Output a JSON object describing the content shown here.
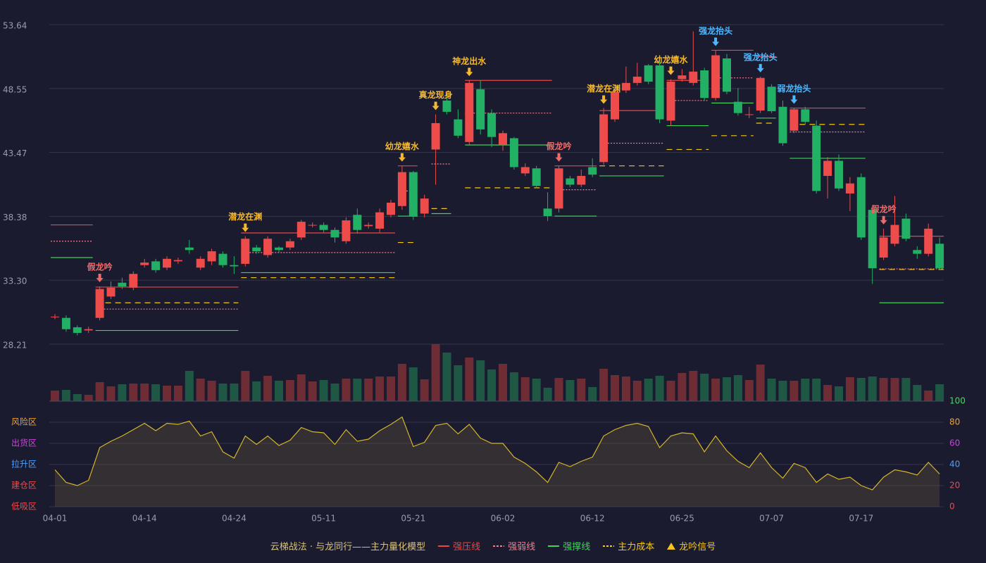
{
  "chart_data": [
    {
      "type": "candlestick",
      "title": "云梯战法 · 与龙同行——主力量化模型",
      "up_color": "#ee4b4b",
      "down_color": "#22b065",
      "ylim": [
        28.21,
        53.64
      ],
      "yticks": [
        28.21,
        {
          "value": 33.3,
          "label": "33.30"
        },
        38.38,
        43.47,
        48.55,
        53.64
      ],
      "grid": true,
      "open": [
        30.4,
        30.3,
        29.55,
        29.3,
        30.3,
        32.0,
        33.1,
        32.7,
        34.5,
        34.8,
        34.3,
        34.8,
        35.9,
        34.3,
        34.8,
        35.4,
        34.5,
        34.6,
        35.9,
        35.3,
        35.9,
        35.9,
        36.7,
        37.7,
        37.7,
        37.3,
        36.4,
        38.5,
        37.6,
        37.4,
        38.5,
        39.2,
        41.9,
        38.6,
        43.7,
        47.6,
        46.1,
        44.3,
        48.5,
        46.6,
        44.1,
        44.6,
        41.8,
        42.2,
        39.0,
        39.0,
        41.4,
        40.9,
        42.3,
        42.7,
        46.1,
        48.4,
        49.0,
        50.4,
        50.4,
        46.0,
        49.3,
        49.0,
        50.0,
        47.8,
        50.95,
        47.5,
        46.5,
        46.8,
        48.7,
        47.1,
        45.2,
        46.9,
        45.6,
        41.6,
        42.8,
        40.2,
        41.5,
        38.9,
        35.1,
        36.2,
        38.2,
        35.7,
        35.4,
        36.2
      ],
      "high": [
        30.6,
        30.5,
        29.7,
        29.6,
        32.8,
        33.2,
        33.5,
        34.0,
        35.0,
        35.0,
        35.2,
        35.1,
        36.5,
        35.2,
        35.8,
        35.6,
        35.2,
        36.8,
        36.1,
        36.8,
        36.0,
        36.6,
        38.1,
        37.9,
        37.9,
        37.5,
        38.3,
        39.0,
        37.9,
        39.0,
        39.7,
        42.4,
        42.0,
        40.1,
        46.5,
        48.1,
        46.9,
        49.2,
        49.2,
        46.9,
        45.2,
        44.7,
        42.6,
        42.4,
        40.3,
        42.4,
        41.6,
        42.1,
        43.0,
        47.0,
        48.5,
        50.3,
        50.6,
        50.5,
        50.9,
        49.3,
        50.1,
        53.1,
        50.2,
        51.6,
        51.3,
        48.6,
        47.1,
        49.5,
        48.9,
        47.6,
        47.0,
        47.1,
        46.0,
        43.1,
        43.3,
        41.5,
        41.8,
        39.1,
        37.4,
        40.0,
        38.6,
        36.0,
        37.8,
        36.7
      ],
      "low": [
        30.2,
        29.2,
        28.9,
        29.1,
        30.1,
        31.8,
        32.6,
        32.5,
        34.3,
        33.9,
        34.1,
        34.6,
        35.4,
        34.1,
        34.5,
        34.3,
        33.8,
        34.4,
        35.4,
        35.1,
        35.5,
        35.7,
        36.5,
        37.5,
        37.1,
        36.3,
        36.2,
        37.0,
        37.4,
        37.1,
        38.3,
        38.9,
        38.1,
        38.3,
        40.9,
        46.5,
        44.6,
        44.1,
        44.9,
        43.9,
        43.6,
        42.1,
        41.6,
        40.6,
        38.0,
        38.7,
        40.7,
        40.7,
        41.5,
        42.5,
        45.9,
        48.2,
        48.8,
        48.9,
        45.8,
        45.6,
        49.1,
        48.8,
        47.6,
        47.6,
        48.1,
        46.4,
        46.2,
        46.6,
        46.6,
        44.0,
        45.0,
        45.7,
        40.2,
        39.8,
        40.4,
        38.8,
        36.5,
        33.0,
        34.9,
        36.0,
        36.4,
        35.0,
        35.2,
        34.1
      ],
      "close": [
        30.4,
        29.4,
        29.1,
        29.4,
        32.6,
        32.7,
        32.8,
        33.8,
        34.7,
        34.1,
        35.0,
        34.9,
        35.7,
        35.0,
        35.6,
        34.5,
        34.4,
        36.6,
        35.6,
        36.6,
        35.7,
        36.4,
        37.95,
        37.7,
        37.3,
        36.7,
        38.06,
        37.3,
        37.7,
        38.7,
        39.47,
        41.9,
        38.35,
        39.8,
        45.8,
        46.7,
        44.8,
        49.0,
        45.3,
        44.7,
        45.0,
        42.3,
        42.3,
        40.8,
        38.4,
        42.2,
        40.9,
        41.6,
        41.7,
        46.5,
        48.3,
        49.0,
        49.5,
        49.1,
        46.1,
        49.1,
        49.6,
        49.9,
        47.8,
        51.2,
        48.3,
        46.6,
        46.5,
        49.4,
        46.75,
        44.2,
        46.9,
        45.9,
        40.4,
        42.8,
        40.6,
        41.0,
        36.7,
        34.25,
        36.7,
        37.7,
        36.6,
        35.4,
        37.4,
        34.25
      ],
      "levels": [
        {
          "name": "强压线",
          "color": "#ee4444",
          "dash": "",
          "segments": [
            {
              "start": 0,
              "end": 3,
              "value": 37.7
            },
            {
              "start": 4,
              "end": 16,
              "value": 32.75
            },
            {
              "start": 17,
              "end": 30,
              "value": 37.06
            },
            {
              "start": 31,
              "end": 32,
              "value": 42.4
            },
            {
              "start": 37,
              "end": 44,
              "value": 49.2
            },
            {
              "start": 45,
              "end": 48,
              "value": 42.4
            },
            {
              "start": 49,
              "end": 54,
              "value": 46.8
            },
            {
              "start": 55,
              "end": 58,
              "value": 49.2
            },
            {
              "start": 59,
              "end": 62,
              "value": 51.6
            },
            {
              "start": 63,
              "end": 64,
              "value": 51.1
            },
            {
              "start": 66,
              "end": 72,
              "value": 47.0
            },
            {
              "start": 74,
              "end": 79,
              "value": 36.8
            }
          ]
        },
        {
          "name": "强弱线",
          "color": "#f27d8c",
          "dash": "2,2",
          "segments": [
            {
              "start": 0,
              "end": 3,
              "value": 36.4
            },
            {
              "start": 4,
              "end": 16,
              "value": 31.0
            },
            {
              "start": 17,
              "end": 30,
              "value": 35.5
            },
            {
              "start": 31,
              "end": 32,
              "value": 40.4
            },
            {
              "start": 34,
              "end": 35,
              "value": 42.55
            },
            {
              "start": 37,
              "end": 44,
              "value": 46.6
            },
            {
              "start": 45,
              "end": 48,
              "value": 40.5
            },
            {
              "start": 49,
              "end": 54,
              "value": 44.2
            },
            {
              "start": 55,
              "end": 58,
              "value": 47.6
            },
            {
              "start": 59,
              "end": 62,
              "value": 49.4
            },
            {
              "start": 66,
              "end": 72,
              "value": 45.1
            },
            {
              "start": 74,
              "end": 79,
              "value": 34.2
            }
          ]
        },
        {
          "name": "强撑线",
          "color": "#3ed45a",
          "dash": "",
          "segments": [
            {
              "start": 0,
              "end": 3,
              "value": 35.1
            },
            {
              "start": 4,
              "end": 16,
              "value": 29.3
            },
            {
              "start": 17,
              "end": 30,
              "value": 33.9
            },
            {
              "start": 31,
              "end": 32,
              "value": 38.4
            },
            {
              "start": 34,
              "end": 35,
              "value": 38.6
            },
            {
              "start": 37,
              "end": 44,
              "value": 44.06
            },
            {
              "start": 45,
              "end": 48,
              "value": 38.4
            },
            {
              "start": 49,
              "end": 54,
              "value": 41.6
            },
            {
              "start": 55,
              "end": 58,
              "value": 45.6
            },
            {
              "start": 59,
              "end": 62,
              "value": 47.4
            },
            {
              "start": 63,
              "end": 64,
              "value": 46.2
            },
            {
              "start": 66,
              "end": 72,
              "value": 43.0
            },
            {
              "start": 74,
              "end": 79,
              "value": 31.5
            }
          ]
        },
        {
          "name": "主力成本",
          "color": "#f5c518",
          "dash": "8,6",
          "segments": [
            {
              "start": 4,
              "end": 16,
              "value": 31.5
            },
            {
              "start": 17,
              "end": 30,
              "value": 33.5
            },
            {
              "start": 31,
              "end": 32,
              "value": 36.3
            },
            {
              "start": 34,
              "end": 35,
              "value": 39.0
            },
            {
              "start": 37,
              "end": 44,
              "value": 40.65
            },
            {
              "start": 49,
              "end": 54,
              "value": 42.4
            },
            {
              "start": 55,
              "end": 58,
              "value": 43.7
            },
            {
              "start": 59,
              "end": 62,
              "value": 44.8
            },
            {
              "start": 63,
              "end": 64,
              "value": 45.8
            },
            {
              "start": 66,
              "end": 72,
              "value": 45.7
            },
            {
              "start": 74,
              "end": 79,
              "value": 34.15
            }
          ]
        }
      ],
      "signal_legend": {
        "name": "龙吟信号",
        "color": "#f5c518"
      },
      "signals": [
        {
          "label": "假龙吟",
          "index": 4,
          "color": "#f06a6a"
        },
        {
          "label": "潜龙在渊",
          "index": 17,
          "color": "#f5b82e"
        },
        {
          "label": "幼龙嬉水",
          "index": 31,
          "color": "#f5b82e"
        },
        {
          "label": "真龙现身",
          "index": 34,
          "color": "#f5b82e"
        },
        {
          "label": "神龙出水",
          "index": 37,
          "color": "#f5b82e"
        },
        {
          "label": "假龙吟",
          "index": 45,
          "color": "#f06a6a"
        },
        {
          "label": "潜龙在渊",
          "index": 49,
          "color": "#f5b82e"
        },
        {
          "label": "幼龙嬉水",
          "index": 55,
          "color": "#f5b82e"
        },
        {
          "label": "强龙抬头",
          "index": 59,
          "color": "#4db8ff"
        },
        {
          "label": "强龙抬头",
          "index": 63,
          "color": "#4db8ff"
        },
        {
          "label": "弱龙抬头",
          "index": 66,
          "color": "#4db8ff"
        },
        {
          "label": "假龙吟",
          "index": 74,
          "color": "#f06a6a"
        }
      ]
    },
    {
      "type": "bar",
      "colors": {
        "up": "#6e2c34",
        "down": "#1e5845"
      },
      "ylim": [
        0,
        81
      ],
      "values": [
        15,
        16,
        10,
        9,
        27,
        21,
        24,
        25,
        25,
        24,
        22,
        22,
        43,
        32,
        29,
        25,
        25,
        43,
        28,
        36,
        29,
        30,
        38,
        28,
        30,
        25,
        32,
        32,
        32,
        35,
        35,
        53,
        48,
        31,
        81,
        69,
        51,
        62,
        58,
        45,
        53,
        41,
        34,
        32,
        19,
        33,
        30,
        32,
        20,
        46,
        37,
        35,
        29,
        32,
        36,
        29,
        40,
        43,
        39,
        32,
        34,
        37,
        30,
        52,
        32,
        29,
        29,
        32,
        32,
        23,
        21,
        34,
        33,
        35,
        33,
        33,
        33,
        23,
        15,
        24
      ]
    },
    {
      "type": "area",
      "color": "#d4b52c",
      "ylim": [
        0,
        100
      ],
      "yticks": [
        0,
        20,
        40,
        60,
        80,
        100
      ],
      "ytick_colors": [
        "#f04848",
        "#f04848",
        "#4d9fff",
        "#d040e0",
        "#f0a030",
        "#3ee050"
      ],
      "zones": [
        {
          "value": 80,
          "label": "风险区",
          "color": "#f0a030"
        },
        {
          "value": 60,
          "label": "出货区",
          "color": "#d040e0"
        },
        {
          "value": 40,
          "label": "拉升区",
          "color": "#4d9fff"
        },
        {
          "value": 20,
          "label": "建仓区",
          "color": "#f04848"
        },
        {
          "value": 0,
          "label": "低吸区",
          "color": "#f04848"
        }
      ],
      "categories": [
        "04-01",
        null,
        null,
        null,
        null,
        null,
        null,
        null,
        "04-14",
        null,
        null,
        null,
        null,
        null,
        null,
        null,
        "04-24",
        null,
        null,
        null,
        null,
        null,
        null,
        null,
        "05-11",
        null,
        null,
        null,
        null,
        null,
        null,
        null,
        "05-21",
        null,
        null,
        null,
        null,
        null,
        null,
        null,
        "06-02",
        null,
        null,
        null,
        null,
        null,
        null,
        null,
        "06-12",
        null,
        null,
        null,
        null,
        null,
        null,
        null,
        "06-25",
        null,
        null,
        null,
        null,
        null,
        null,
        null,
        "07-07",
        null,
        null,
        null,
        null,
        null,
        null,
        null,
        "07-17",
        null,
        null,
        null,
        null,
        null,
        null,
        null
      ],
      "values": [
        35,
        23,
        20,
        25,
        56,
        62,
        67,
        73,
        79,
        72,
        79,
        78,
        81,
        67,
        71,
        52,
        46,
        67,
        59,
        67,
        58,
        63,
        75,
        71,
        70,
        59,
        73,
        62,
        64,
        72,
        78,
        85,
        57,
        61,
        77,
        79,
        69,
        78,
        65,
        60,
        60,
        47,
        41,
        33,
        23,
        42,
        38,
        43,
        47,
        67,
        73,
        77,
        79,
        76,
        56,
        67,
        70,
        69,
        52,
        67,
        53,
        43,
        37,
        51,
        37,
        27,
        41,
        37,
        23,
        31,
        26,
        28,
        20,
        16,
        28,
        35,
        33,
        30,
        42,
        31
      ]
    }
  ]
}
